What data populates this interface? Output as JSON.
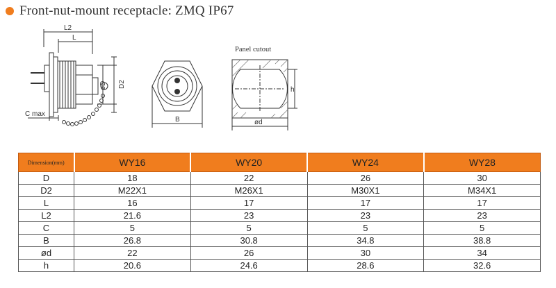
{
  "title": "Front-nut-mount receptacle: ZMQ  IP67",
  "accent_color": "#f07d1e",
  "drawing": {
    "labels": {
      "l2": "L2",
      "l": "L",
      "od": "øD",
      "d2": "D2",
      "cmax": "C max",
      "b": "B",
      "panel_cutout": "Panel cutout",
      "h": "h",
      "od_small": "ød"
    }
  },
  "table": {
    "header": [
      "Dimension(mm)",
      "WY16",
      "WY20",
      "WY24",
      "WY28"
    ],
    "rows": [
      [
        "D",
        "18",
        "22",
        "26",
        "30"
      ],
      [
        "D2",
        "M22X1",
        "M26X1",
        "M30X1",
        "M34X1"
      ],
      [
        "L",
        "16",
        "17",
        "17",
        "17"
      ],
      [
        "L2",
        "21.6",
        "23",
        "23",
        "23"
      ],
      [
        "C",
        "5",
        "5",
        "5",
        "5"
      ],
      [
        "B",
        "26.8",
        "30.8",
        "34.8",
        "38.8"
      ],
      [
        "ød",
        "22",
        "26",
        "30",
        "34"
      ],
      [
        "h",
        "20.6",
        "24.6",
        "28.6",
        "32.6"
      ]
    ]
  }
}
